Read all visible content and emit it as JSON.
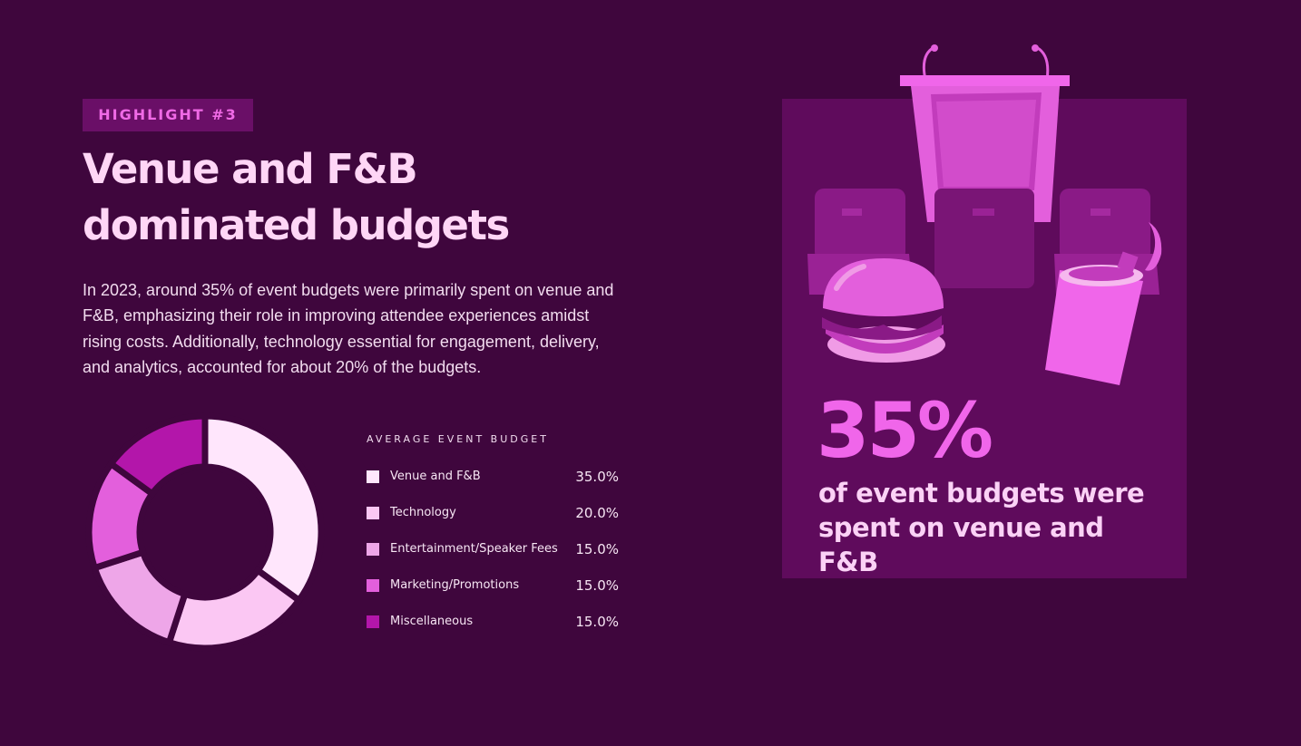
{
  "highlight": {
    "label": "HIGHLIGHT #3"
  },
  "headline": {
    "line1": "Venue and F&B",
    "line2": "dominated budgets"
  },
  "description": "In 2023, around 35% of event budgets were primarily spent on venue and F&B, emphasizing their role in improving attendee experiences amidst rising costs. Additionally, technology essential for engagement, delivery, and analytics, accounted for about 20% of the budgets.",
  "stat": {
    "value": "35%",
    "caption_line1": "of event budgets were",
    "caption_line2": "spent on venue and F&B"
  },
  "colors": {
    "background": "#3f063d",
    "panel": "#5f0b5c",
    "accent": "#f066ea",
    "headline": "#ffd6f6"
  },
  "illustration_icons": [
    "podium-icon",
    "chair-icon",
    "burger-icon",
    "drink-cup-icon"
  ],
  "chart_data": {
    "type": "pie",
    "style": "donut",
    "title": "AVERAGE EVENT BUDGET",
    "categories": [
      "Venue and F&B",
      "Technology",
      "Entertainment/Speaker Fees",
      "Marketing/Promotions",
      "Miscellaneous"
    ],
    "values": [
      35.0,
      20.0,
      15.0,
      15.0,
      15.0
    ],
    "value_labels": [
      "35.0%",
      "20.0%",
      "15.0%",
      "15.0%",
      "15.0%"
    ],
    "colors": [
      "#ffe6fc",
      "#fbc7f3",
      "#eea6e8",
      "#e35fdc",
      "#b316aa"
    ],
    "legend_position": "right"
  }
}
